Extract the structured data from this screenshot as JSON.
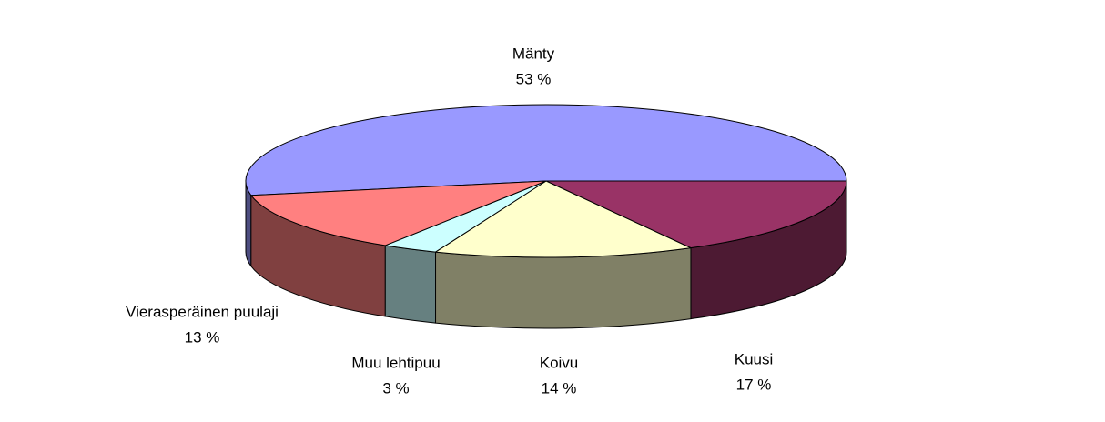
{
  "chart_data": {
    "type": "pie3d",
    "categories": [
      "Mänty",
      "Kuusi",
      "Koivu",
      "Muu lehtipuu",
      "Vierasperäinen puulaji"
    ],
    "values": [
      53,
      17,
      14,
      3,
      13
    ],
    "value_labels": [
      "53 %",
      "17 %",
      "14 %",
      "3 %",
      "13 %"
    ],
    "colors": [
      "#9999ff",
      "#993366",
      "#ffffcc",
      "#ccffff",
      "#ff8080"
    ]
  }
}
